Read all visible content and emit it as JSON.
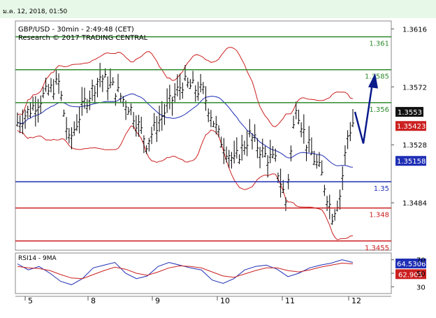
{
  "header": {
    "datetime": "ม.ค. 12, 2018, 01:50"
  },
  "chart_data": [
    {
      "type": "line",
      "title": "GBP/USD - 30min - 2:49:48 (CET)",
      "subtitle": "Research © 2017 TRADING CENTRAL",
      "ylim": [
        1.3448,
        1.3622
      ],
      "y_ticks": [
        1.3616,
        1.3572,
        1.3528,
        1.3484
      ],
      "x_ticks": [
        "5",
        "8",
        "9",
        "10",
        "11",
        "12"
      ],
      "current_price": "1.3553",
      "bollinger_upper_label": "1.35423",
      "bollinger_mid_label": "1.35158",
      "levels": [
        {
          "label": "1.361",
          "value": 1.361,
          "color": "#2d8a2d"
        },
        {
          "label": "1.3585",
          "value": 1.3585,
          "color": "#2d8a2d"
        },
        {
          "label": "1.356",
          "value": 1.356,
          "color": "#2d8a2d"
        },
        {
          "label": "1.35",
          "value": 1.35,
          "color": "#1f2fb5"
        },
        {
          "label": "1.348",
          "value": 1.348,
          "color": "#cc2020"
        },
        {
          "label": "1.3455",
          "value": 1.3455,
          "color": "#cc2020"
        }
      ],
      "forecast_arrow": [
        [
          1.3553,
          1.3529,
          1.3575
        ]
      ],
      "colors": {
        "candles": "#000000",
        "bands": "#cc2020",
        "ma": "#1f2fb5",
        "arrow": "#0a1a8a"
      }
    },
    {
      "type": "line",
      "title": "RSI14 - 9MA",
      "ylim": [
        20,
        80
      ],
      "y_ticks": [
        70,
        50,
        30
      ],
      "rsi_value_label": "64.5306",
      "ma_value_label": "62.905",
      "series": [
        {
          "values": [
            64,
            55,
            60,
            50,
            38,
            33,
            42,
            58,
            62,
            66,
            50,
            42,
            46,
            60,
            66,
            62,
            58,
            55,
            40,
            35,
            42,
            55,
            60,
            62,
            56,
            45,
            50,
            58,
            62,
            65,
            70,
            66
          ]
        },
        {
          "values": [
            60,
            58,
            57,
            54,
            48,
            43,
            42,
            48,
            54,
            59,
            56,
            50,
            47,
            52,
            58,
            61,
            60,
            58,
            52,
            46,
            44,
            49,
            54,
            58,
            58,
            54,
            52,
            55,
            59,
            62,
            65,
            64
          ]
        }
      ]
    }
  ]
}
